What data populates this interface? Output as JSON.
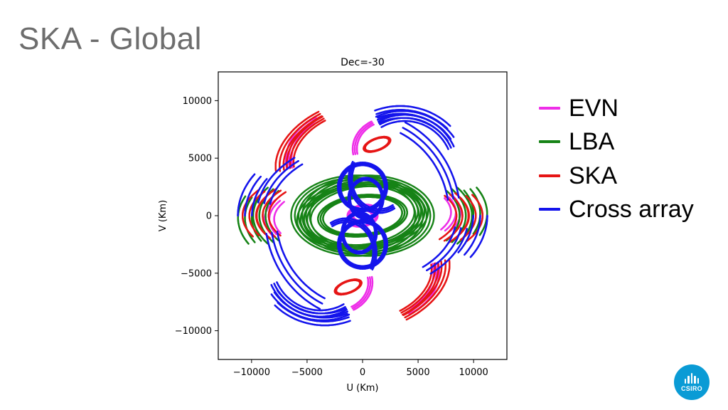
{
  "slide": {
    "title": "SKA - Global"
  },
  "chart_data": {
    "type": "scatter",
    "title": "Dec=-30",
    "xlabel": "U (Km)",
    "ylabel": "V (Km)",
    "xlim": [
      -13000,
      13000
    ],
    "ylim": [
      -12500,
      12500
    ],
    "xticks": [
      -10000,
      -5000,
      0,
      5000,
      10000
    ],
    "yticks": [
      -10000,
      -5000,
      0,
      5000,
      10000
    ],
    "xtick_labels": [
      "−10000",
      "−5000",
      "0",
      "5000",
      "10000"
    ],
    "ytick_labels": [
      "−10000",
      "−5000",
      "0",
      "5000",
      "10000"
    ],
    "grid": false,
    "legend_position": "right",
    "series": [
      {
        "name": "EVN",
        "color": "#ee2ee8",
        "tracks": [
          {
            "center": [
              0,
              0
            ],
            "r": [
              900,
              500
            ],
            "tilt": 0,
            "arc": [
              0,
              360
            ]
          },
          {
            "center": [
              0,
              200
            ],
            "r": [
              1300,
              700
            ],
            "tilt": 10,
            "arc": [
              0,
              360
            ]
          },
          {
            "center": [
              2500,
              5800
            ],
            "r": [
              3200,
              2600
            ],
            "tilt": 0,
            "arc": [
              120,
              190
            ]
          },
          {
            "center": [
              -2500,
              -5800
            ],
            "r": [
              3200,
              2600
            ],
            "tilt": 0,
            "arc": [
              300,
              370
            ]
          },
          {
            "center": [
              -2500,
              5200
            ],
            "r": [
              4200,
              3500
            ],
            "tilt": 15,
            "arc": [
              100,
              180
            ]
          },
          {
            "center": [
              2500,
              -5200
            ],
            "r": [
              4200,
              3500
            ],
            "tilt": 15,
            "arc": [
              280,
              360
            ]
          },
          {
            "center": [
              1200,
              300
            ],
            "r": [
              7200,
              3200
            ],
            "tilt": 0,
            "arc": [
              330,
              385
            ]
          },
          {
            "center": [
              -1200,
              -300
            ],
            "r": [
              7200,
              3200
            ],
            "tilt": 0,
            "arc": [
              150,
              205
            ]
          }
        ]
      },
      {
        "name": "LBA",
        "color": "#168316",
        "tracks": [
          {
            "center": [
              0,
              0
            ],
            "r": [
              3800,
              1700
            ],
            "tilt": 5,
            "arc": [
              0,
              360
            ]
          },
          {
            "center": [
              300,
              0
            ],
            "r": [
              5300,
              2700
            ],
            "tilt": 5,
            "arc": [
              0,
              360
            ]
          },
          {
            "center": [
              500,
              0
            ],
            "r": [
              5600,
              3300
            ],
            "tilt": 0,
            "arc": [
              0,
              360
            ]
          },
          {
            "center": [
              0,
              0
            ],
            "r": [
              9300,
              4600
            ],
            "tilt": 0,
            "arc": [
              330,
              390
            ]
          },
          {
            "center": [
              0,
              0
            ],
            "r": [
              9300,
              4600
            ],
            "tilt": 0,
            "arc": [
              150,
              210
            ]
          },
          {
            "center": [
              300,
              200
            ],
            "r": [
              10300,
              5200
            ],
            "tilt": 0,
            "arc": [
              340,
              385
            ]
          },
          {
            "center": [
              -300,
              -200
            ],
            "r": [
              10300,
              5200
            ],
            "tilt": 0,
            "arc": [
              160,
              205
            ]
          }
        ]
      },
      {
        "name": "SKA",
        "color": "#e61515",
        "tracks": [
          {
            "center": [
              -1500,
              5600
            ],
            "r": [
              5200,
              3400
            ],
            "tilt": 20,
            "arc": [
              100,
              175
            ]
          },
          {
            "center": [
              -1500,
              5600
            ],
            "r": [
              6200,
              3900
            ],
            "tilt": 20,
            "arc": [
              100,
              175
            ]
          },
          {
            "center": [
              1500,
              -5600
            ],
            "r": [
              5200,
              3400
            ],
            "tilt": 20,
            "arc": [
              280,
              355
            ]
          },
          {
            "center": [
              1500,
              -5600
            ],
            "r": [
              6200,
              3900
            ],
            "tilt": 20,
            "arc": [
              280,
              355
            ]
          },
          {
            "center": [
              1300,
              6200
            ],
            "r": [
              1200,
              500
            ],
            "tilt": 20,
            "arc": [
              0,
              360
            ]
          },
          {
            "center": [
              -1300,
              -6200
            ],
            "r": [
              1200,
              500
            ],
            "tilt": 20,
            "arc": [
              0,
              360
            ]
          },
          {
            "center": [
              0,
              0
            ],
            "r": [
              10200,
              4200
            ],
            "tilt": 0,
            "arc": [
              150,
              205
            ]
          },
          {
            "center": [
              0,
              0
            ],
            "r": [
              10200,
              4200
            ],
            "tilt": 0,
            "arc": [
              330,
              385
            ]
          },
          {
            "center": [
              0,
              0
            ],
            "r": [
              9000,
              3800
            ],
            "tilt": 0,
            "arc": [
              145,
              210
            ]
          },
          {
            "center": [
              0,
              0
            ],
            "r": [
              9000,
              3800
            ],
            "tilt": 0,
            "arc": [
              325,
              390
            ]
          }
        ]
      },
      {
        "name": "Cross array",
        "color": "#1414ec",
        "tracks": [
          {
            "center": [
              3800,
              4000
            ],
            "r": [
              4600,
              4500
            ],
            "tilt": 0,
            "arc": [
              25,
              120
            ]
          },
          {
            "center": [
              3600,
              3800
            ],
            "r": [
              5300,
              5000
            ],
            "tilt": 0,
            "arc": [
              35,
              115
            ]
          },
          {
            "center": [
              3400,
              3600
            ],
            "r": [
              6000,
              5600
            ],
            "tilt": 0,
            "arc": [
              45,
              112
            ]
          },
          {
            "center": [
              -3800,
              -4000
            ],
            "r": [
              4600,
              4500
            ],
            "tilt": 0,
            "arc": [
              205,
              300
            ]
          },
          {
            "center": [
              -3600,
              -3800
            ],
            "r": [
              5300,
              5000
            ],
            "tilt": 0,
            "arc": [
              215,
              295
            ]
          },
          {
            "center": [
              -3400,
              -3600
            ],
            "r": [
              6000,
              5600
            ],
            "tilt": 0,
            "arc": [
              225,
              292
            ]
          },
          {
            "center": [
              0,
              2500
            ],
            "r": [
              2100,
              2000
            ],
            "tilt": 0,
            "arc": [
              0,
              360
            ]
          },
          {
            "center": [
              0,
              -2500
            ],
            "r": [
              2100,
              2000
            ],
            "tilt": 0,
            "arc": [
              0,
              360
            ]
          },
          {
            "center": [
              300,
              1500
            ],
            "r": [
              1500,
              1700
            ],
            "tilt": 0,
            "arc": [
              0,
              360
            ]
          },
          {
            "center": [
              -300,
              -1500
            ],
            "r": [
              1500,
              1700
            ],
            "tilt": 0,
            "arc": [
              0,
              360
            ]
          },
          {
            "center": [
              0,
              0
            ],
            "r": [
              9000,
              6200
            ],
            "tilt": 0,
            "arc": [
              310,
              350
            ]
          },
          {
            "center": [
              0,
              0
            ],
            "r": [
              9000,
              6200
            ],
            "tilt": 0,
            "arc": [
              130,
              170
            ]
          },
          {
            "center": [
              0,
              0
            ],
            "r": [
              10600,
              6800
            ],
            "tilt": 0,
            "arc": [
              330,
              360
            ]
          },
          {
            "center": [
              0,
              0
            ],
            "r": [
              10600,
              6800
            ],
            "tilt": 0,
            "arc": [
              150,
              180
            ]
          },
          {
            "center": [
              0,
              0
            ],
            "r": [
              8300,
              8500
            ],
            "tilt": 0,
            "arc": [
              190,
              245
            ]
          },
          {
            "center": [
              0,
              0
            ],
            "r": [
              8300,
              8500
            ],
            "tilt": 0,
            "arc": [
              10,
              65
            ]
          },
          {
            "center": [
              1500,
              3200
            ],
            "r": [
              2600,
              2800
            ],
            "tilt": 0,
            "arc": [
              150,
              300
            ]
          },
          {
            "center": [
              -1500,
              -3200
            ],
            "r": [
              2600,
              2800
            ],
            "tilt": 0,
            "arc": [
              330,
              480
            ]
          }
        ]
      }
    ]
  }
}
